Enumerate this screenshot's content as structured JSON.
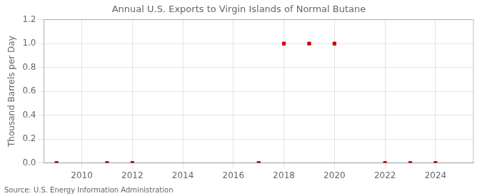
{
  "chart_data": {
    "type": "scatter",
    "title": "Annual U.S. Exports to Virgin Islands of Normal Butane",
    "ylabel": "Thousand Barrels per Day",
    "annotation": "Source: U.S. Energy Information Administration",
    "x": [
      2009,
      2011,
      2012,
      2017,
      2018,
      2019,
      2020,
      2022,
      2023,
      2024
    ],
    "values": [
      0,
      0,
      0,
      0,
      1.0,
      1.0,
      1.0,
      0,
      0,
      0
    ],
    "color": "#cc0000",
    "marker": "square",
    "xlim": [
      2008.5,
      2025.5
    ],
    "xticks": [
      2010,
      2012,
      2014,
      2016,
      2018,
      2020,
      2022,
      2024
    ],
    "ylim": [
      0,
      1.2
    ],
    "yticks": [
      {
        "value": 0.0,
        "label": "0.0"
      },
      0.2,
      0.4,
      0.6,
      0.8,
      {
        "value": 1.0,
        "label": "1.0"
      },
      1.2
    ],
    "grid": true
  }
}
